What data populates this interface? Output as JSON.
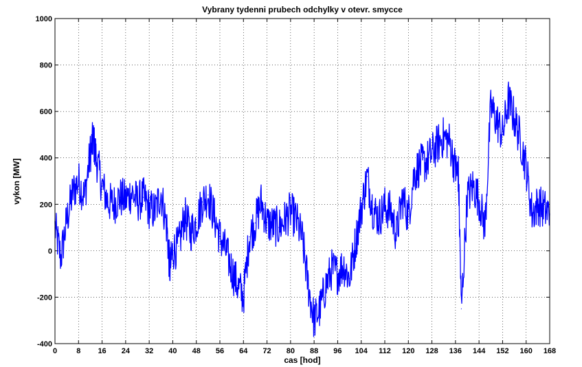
{
  "chart_data": {
    "type": "line",
    "title": "Vybrany tydenni prubech odchylky v otevr. smycce",
    "xlabel": "cas [hod]",
    "ylabel": "vykon [MW]",
    "xlim": [
      0,
      168
    ],
    "ylim": [
      -400,
      1000
    ],
    "x_ticks": [
      0,
      8,
      16,
      24,
      32,
      40,
      48,
      56,
      64,
      72,
      80,
      88,
      96,
      104,
      112,
      120,
      128,
      136,
      144,
      152,
      160,
      168
    ],
    "y_ticks": [
      -400,
      -200,
      0,
      200,
      400,
      600,
      800,
      1000
    ],
    "grid": true,
    "series": [
      {
        "color": "#0000ff",
        "x": [
          0,
          2,
          4,
          6,
          8,
          10,
          12,
          13,
          14,
          16,
          18,
          20,
          22,
          24,
          26,
          28,
          30,
          32,
          34,
          36,
          38,
          39,
          40,
          42,
          44,
          46,
          48,
          50,
          52,
          54,
          56,
          58,
          60,
          62,
          64,
          66,
          68,
          70,
          72,
          74,
          76,
          78,
          80,
          82,
          84,
          86,
          88,
          90,
          92,
          94,
          96,
          98,
          100,
          102,
          104,
          106,
          108,
          110,
          112,
          114,
          116,
          118,
          120,
          122,
          124,
          126,
          128,
          130,
          132,
          134,
          136,
          137,
          138,
          140,
          142,
          144,
          146,
          148,
          150,
          152,
          154,
          156,
          158,
          160,
          162,
          164,
          166,
          168
        ],
        "y": [
          100,
          -30,
          130,
          250,
          300,
          230,
          420,
          480,
          400,
          280,
          210,
          200,
          230,
          220,
          250,
          210,
          230,
          180,
          170,
          250,
          100,
          -80,
          0,
          20,
          150,
          80,
          120,
          210,
          240,
          150,
          60,
          0,
          -80,
          -150,
          -200,
          60,
          120,
          210,
          120,
          110,
          100,
          130,
          170,
          130,
          50,
          -150,
          -300,
          -250,
          -150,
          -80,
          -100,
          -60,
          -120,
          30,
          180,
          320,
          180,
          140,
          190,
          170,
          70,
          230,
          150,
          330,
          370,
          380,
          420,
          460,
          490,
          470,
          350,
          330,
          -250,
          230,
          280,
          220,
          100,
          620,
          560,
          500,
          650,
          570,
          480,
          360,
          160,
          200,
          180,
          160
        ]
      }
    ]
  }
}
